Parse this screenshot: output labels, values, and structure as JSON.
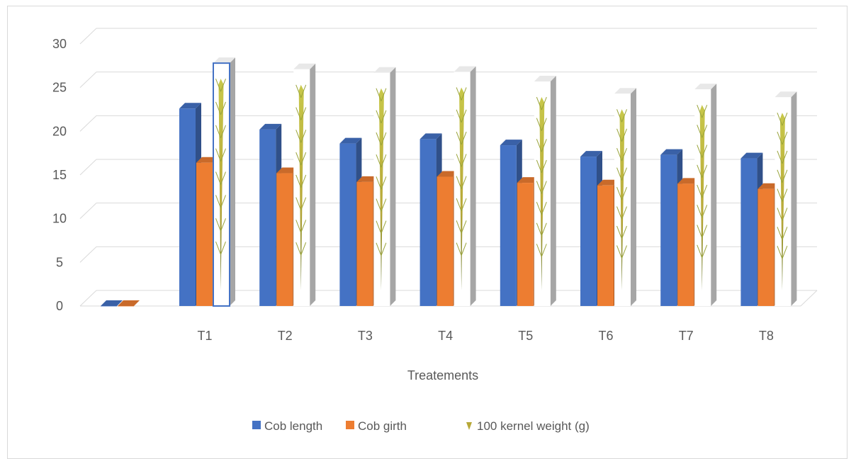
{
  "chart_data": {
    "type": "bar",
    "title": "",
    "xlabel": "Treatements",
    "ylabel": "",
    "ylim": [
      0,
      30
    ],
    "yticks": [
      0,
      5,
      10,
      15,
      20,
      25,
      30
    ],
    "grid": true,
    "legend_position": "bottom",
    "categories": [
      "",
      "T1",
      "T2",
      "T3",
      "T4",
      "T5",
      "T6",
      "T7",
      "T8"
    ],
    "series": [
      {
        "name": "Cob length",
        "color": "#4472c4",
        "values": [
          0,
          22.6,
          20.2,
          18.6,
          19.1,
          18.4,
          17.1,
          17.3,
          16.9
        ]
      },
      {
        "name": "Cob girth",
        "color": "#ed7d31",
        "values": [
          0,
          16.4,
          15.2,
          14.2,
          14.8,
          14.1,
          13.8,
          14.0,
          13.4
        ]
      },
      {
        "name": "100 kernel weight (g)",
        "color": "#a6a6a6",
        "icon": "wheat-ear-icon",
        "values": [
          null,
          27.8,
          27.1,
          26.7,
          26.8,
          25.7,
          24.3,
          24.8,
          23.9
        ]
      }
    ]
  }
}
